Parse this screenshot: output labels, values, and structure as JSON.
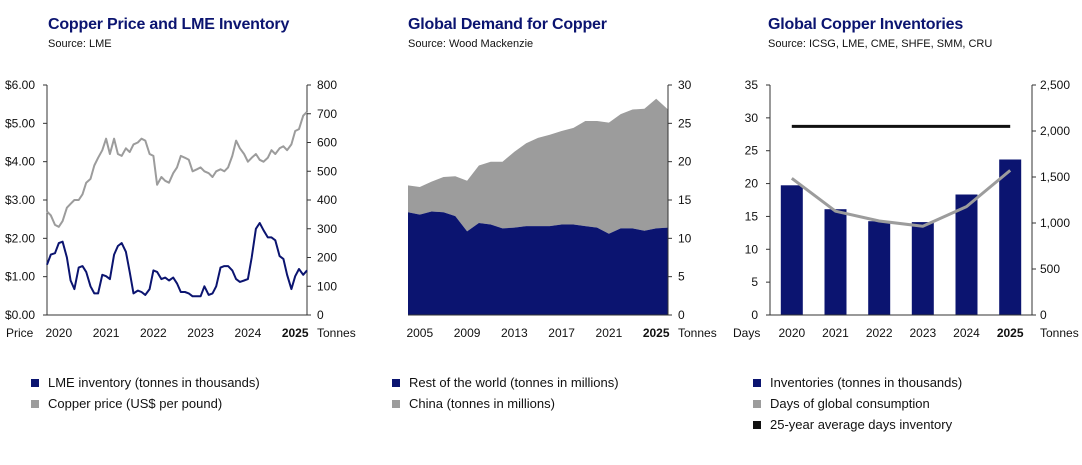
{
  "colors": {
    "navy": "#0b1470",
    "gray": "#9c9c9c",
    "black": "#111111"
  },
  "charts": [
    {
      "title": "Copper Price and LME Inventory",
      "source": "Source: LME",
      "chart_data": {
        "type": "line",
        "x_start": 2019.75,
        "x_end": 2025.25,
        "left_axis": {
          "label": "Price",
          "ticks": [
            "$0.00",
            "$1.00",
            "$2.00",
            "$3.00",
            "$4.00",
            "$5.00",
            "$6.00"
          ],
          "range": [
            0,
            6
          ]
        },
        "right_axis": {
          "label": "Tonnes",
          "ticks": [
            "0",
            "100",
            "200",
            "300",
            "400",
            "500",
            "600",
            "700",
            "800"
          ],
          "range": [
            0,
            800
          ]
        },
        "x_ticks": [
          {
            "label": "2020",
            "x": 2020,
            "bold": false
          },
          {
            "label": "2021",
            "x": 2021,
            "bold": false
          },
          {
            "label": "2022",
            "x": 2022,
            "bold": false
          },
          {
            "label": "2023",
            "x": 2023,
            "bold": false
          },
          {
            "label": "2024",
            "x": 2024,
            "bold": false
          },
          {
            "label": "2025",
            "x": 2025,
            "bold": true
          }
        ],
        "series": [
          {
            "name": "LME inventory (tonnes in thousands)",
            "axis": "right",
            "color": "#0b1470",
            "x": [
              2019.75,
              2019.83,
              2019.92,
              2020.0,
              2020.08,
              2020.17,
              2020.25,
              2020.33,
              2020.42,
              2020.5,
              2020.58,
              2020.67,
              2020.75,
              2020.83,
              2020.92,
              2021.0,
              2021.08,
              2021.17,
              2021.25,
              2021.33,
              2021.42,
              2021.5,
              2021.58,
              2021.67,
              2021.75,
              2021.83,
              2021.92,
              2022.0,
              2022.08,
              2022.17,
              2022.25,
              2022.33,
              2022.42,
              2022.5,
              2022.58,
              2022.67,
              2022.75,
              2022.83,
              2022.92,
              2023.0,
              2023.08,
              2023.17,
              2023.25,
              2023.33,
              2023.42,
              2023.5,
              2023.58,
              2023.67,
              2023.75,
              2023.83,
              2023.92,
              2024.0,
              2024.08,
              2024.17,
              2024.25,
              2024.33,
              2024.42,
              2024.5,
              2024.58,
              2024.67,
              2024.75,
              2024.83,
              2024.92,
              2025.0,
              2025.08,
              2025.17,
              2025.25
            ],
            "values": [
              175,
              210,
              215,
              250,
              255,
              200,
              120,
              90,
              165,
              170,
              150,
              100,
              75,
              75,
              140,
              135,
              125,
              210,
              240,
              250,
              220,
              150,
              75,
              85,
              80,
              70,
              90,
              155,
              150,
              125,
              130,
              120,
              130,
              110,
              80,
              80,
              75,
              65,
              65,
              65,
              100,
              70,
              75,
              100,
              165,
              170,
              170,
              155,
              125,
              115,
              120,
              125,
              200,
              300,
              320,
              295,
              270,
              270,
              260,
              205,
              195,
              140,
              90,
              135,
              160,
              140,
              155
            ]
          },
          {
            "name": "Copper price (US$ per pound)",
            "axis": "left",
            "color": "#9c9c9c",
            "x": [
              2019.75,
              2019.83,
              2019.92,
              2020.0,
              2020.08,
              2020.17,
              2020.25,
              2020.33,
              2020.42,
              2020.5,
              2020.58,
              2020.67,
              2020.75,
              2020.83,
              2020.92,
              2021.0,
              2021.08,
              2021.17,
              2021.25,
              2021.33,
              2021.42,
              2021.5,
              2021.58,
              2021.67,
              2021.75,
              2021.83,
              2021.92,
              2022.0,
              2022.08,
              2022.17,
              2022.25,
              2022.33,
              2022.42,
              2022.5,
              2022.58,
              2022.67,
              2022.75,
              2022.83,
              2022.92,
              2023.0,
              2023.08,
              2023.17,
              2023.25,
              2023.33,
              2023.42,
              2023.5,
              2023.58,
              2023.67,
              2023.75,
              2023.83,
              2023.92,
              2024.0,
              2024.08,
              2024.17,
              2024.25,
              2024.33,
              2024.42,
              2024.5,
              2024.58,
              2024.67,
              2024.75,
              2024.83,
              2024.92,
              2025.0,
              2025.08,
              2025.17,
              2025.25
            ],
            "values": [
              2.7,
              2.6,
              2.35,
              2.3,
              2.45,
              2.8,
              2.9,
              3.0,
              3.0,
              3.15,
              3.45,
              3.55,
              3.9,
              4.1,
              4.3,
              4.6,
              4.2,
              4.6,
              4.2,
              4.15,
              4.35,
              4.25,
              4.45,
              4.5,
              4.6,
              4.55,
              4.2,
              4.15,
              3.4,
              3.6,
              3.5,
              3.45,
              3.7,
              3.85,
              4.15,
              4.1,
              4.05,
              3.75,
              3.8,
              3.85,
              3.75,
              3.7,
              3.6,
              3.75,
              3.8,
              3.75,
              3.85,
              4.15,
              4.55,
              4.35,
              4.2,
              4.0,
              4.1,
              4.2,
              4.05,
              4.0,
              4.1,
              4.3,
              4.2,
              4.35,
              4.4,
              4.3,
              4.45,
              4.8,
              4.85,
              5.2,
              5.3
            ]
          }
        ]
      }
    },
    {
      "title": "Global Demand for Copper",
      "source": "Source: Wood Mackenzie",
      "chart_data": {
        "type": "area",
        "stacked": true,
        "x_start": 2004,
        "x_end": 2026,
        "right_axis": {
          "label": "Tonnes",
          "ticks": [
            "0",
            "5",
            "10",
            "15",
            "20",
            "25",
            "30"
          ],
          "range": [
            0,
            30
          ]
        },
        "x_ticks": [
          {
            "label": "2005",
            "x": 2005,
            "bold": false
          },
          {
            "label": "2009",
            "x": 2009,
            "bold": false
          },
          {
            "label": "2013",
            "x": 2013,
            "bold": false
          },
          {
            "label": "2017",
            "x": 2017,
            "bold": false
          },
          {
            "label": "2021",
            "x": 2021,
            "bold": false
          },
          {
            "label": "2025",
            "x": 2025,
            "bold": true
          }
        ],
        "x": [
          2004,
          2005,
          2006,
          2007,
          2008,
          2009,
          2010,
          2011,
          2012,
          2013,
          2014,
          2015,
          2016,
          2017,
          2018,
          2019,
          2020,
          2021,
          2022,
          2023,
          2024,
          2025,
          2026
        ],
        "series": [
          {
            "name": "Rest of the world (tonnes in millions)",
            "color": "#0b1470",
            "values": [
              13.4,
              13.1,
              13.5,
              13.4,
              12.9,
              10.9,
              12.0,
              11.8,
              11.3,
              11.4,
              11.6,
              11.6,
              11.6,
              11.8,
              11.8,
              11.6,
              11.4,
              10.6,
              11.3,
              11.3,
              11.0,
              11.3,
              11.4
            ]
          },
          {
            "name": "China (tonnes in millions)",
            "color": "#9c9c9c",
            "values": [
              3.5,
              3.6,
              3.9,
              4.6,
              5.2,
              6.6,
              7.5,
              8.2,
              8.7,
              9.9,
              10.8,
              11.5,
              11.9,
              12.2,
              12.6,
              13.7,
              13.9,
              14.5,
              14.9,
              15.5,
              15.9,
              16.9,
              15.4
            ]
          }
        ]
      }
    },
    {
      "title": "Global Copper Inventories",
      "source": "Source: ICSG,  LME, CME, SHFE, SMM, CRU",
      "chart_data": {
        "type": "bar",
        "categories": [
          "2020",
          "2021",
          "2022",
          "2023",
          "2024",
          "2025"
        ],
        "bold_categories": [
          "2025"
        ],
        "left_axis": {
          "label": "Days",
          "ticks": [
            "0",
            "5",
            "10",
            "15",
            "20",
            "25",
            "30",
            "35"
          ],
          "range": [
            0,
            35
          ]
        },
        "right_axis": {
          "label": "Tonnes",
          "ticks": [
            "0",
            "500",
            "1,000",
            "1,500",
            "2,000",
            "2,500"
          ],
          "range": [
            0,
            2500
          ]
        },
        "series": [
          {
            "name": "Inventories (tonnes in thousands)",
            "type": "bar",
            "axis": "right",
            "color": "#0b1470",
            "values": [
              1410,
              1150,
              1020,
              1010,
              1310,
              1690
            ]
          },
          {
            "name": "Days of global consumption",
            "type": "line",
            "axis": "left",
            "color": "#9c9c9c",
            "values": [
              20.8,
              15.8,
              14.3,
              13.5,
              16.5,
              22.0
            ]
          },
          {
            "name": "25-year average days inventory",
            "type": "line",
            "axis": "left",
            "color": "#111111",
            "values": [
              28.7,
              28.7,
              28.7,
              28.7,
              28.7,
              28.7
            ]
          }
        ]
      }
    }
  ]
}
